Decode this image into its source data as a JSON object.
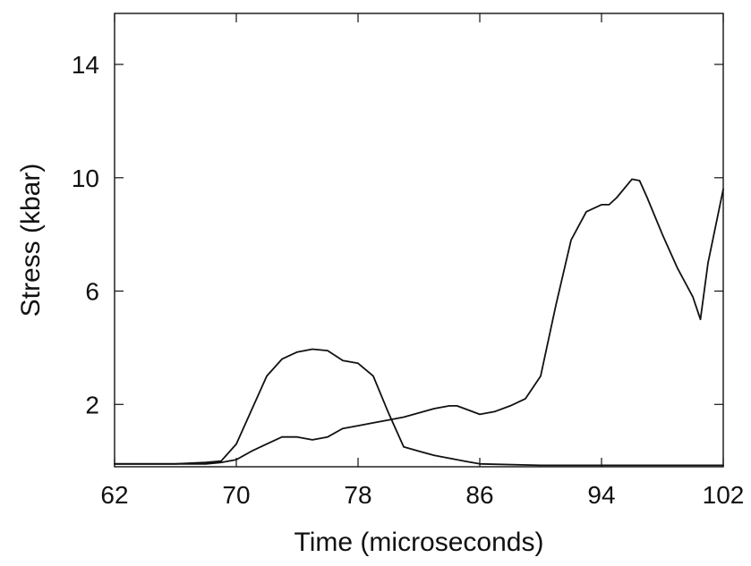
{
  "chart_data": {
    "type": "line",
    "title": "",
    "xlabel": "Time (microseconds)",
    "ylabel": "Stress (kbar)",
    "xlim": [
      62,
      102
    ],
    "ylim": [
      -0.2,
      15.8
    ],
    "x_ticks": [
      62,
      70,
      78,
      86,
      94,
      102
    ],
    "y_ticks": [
      2,
      6,
      10,
      14
    ],
    "grid": false,
    "legend": "none",
    "series": [
      {
        "color": "#111111",
        "x": [
          62,
          66,
          68,
          69,
          70,
          71,
          72,
          73,
          74,
          75,
          76,
          77,
          78,
          79,
          80,
          81,
          82,
          83,
          84,
          85,
          85.5,
          86,
          90,
          95,
          100,
          102
        ],
        "y": [
          -0.1,
          -0.1,
          -0.05,
          0.0,
          0.6,
          1.8,
          3.0,
          3.6,
          3.85,
          3.95,
          3.9,
          3.55,
          3.45,
          3.0,
          1.7,
          0.5,
          0.35,
          0.2,
          0.1,
          0.0,
          -0.05,
          -0.1,
          -0.15,
          -0.15,
          -0.15,
          -0.15
        ]
      },
      {
        "color": "#111111",
        "x": [
          62,
          68,
          69,
          70,
          71,
          72,
          73,
          74,
          75,
          76,
          77,
          78,
          79,
          80,
          81,
          82,
          83,
          84,
          84.5,
          85,
          86,
          87,
          88,
          89,
          90,
          91,
          92,
          93,
          94,
          94.5,
          95,
          96,
          96.5,
          97,
          98,
          99,
          100,
          100.5,
          101,
          102
        ],
        "y": [
          -0.1,
          -0.1,
          -0.05,
          0.05,
          0.35,
          0.6,
          0.85,
          0.85,
          0.75,
          0.85,
          1.15,
          1.25,
          1.35,
          1.45,
          1.55,
          1.7,
          1.85,
          1.95,
          1.95,
          1.85,
          1.65,
          1.75,
          1.95,
          2.2,
          3.0,
          5.5,
          7.8,
          8.8,
          9.05,
          9.05,
          9.3,
          9.95,
          9.9,
          9.3,
          8.0,
          6.8,
          5.8,
          5.0,
          7.0,
          9.6
        ]
      }
    ]
  }
}
